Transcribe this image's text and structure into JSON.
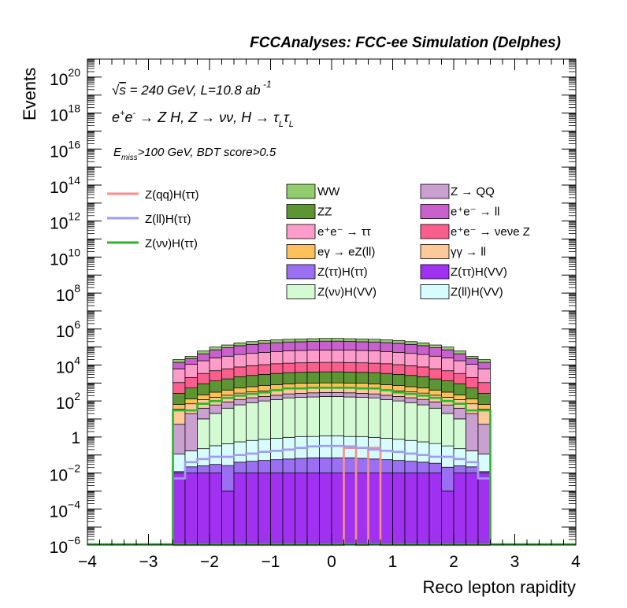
{
  "chart_data": {
    "type": "histogram",
    "title": "FCCAnalyses: FCC-ee Simulation (Delphes)",
    "xlabel": "Reco lepton rapidity",
    "ylabel": "Events",
    "xlim": [
      -4,
      4
    ],
    "ylim": [
      1e-06,
      1e+21
    ],
    "yscale": "log",
    "x_ticks": [
      "−4",
      "−3",
      "−2",
      "−1",
      "0",
      "1",
      "2",
      "3",
      "4"
    ],
    "y_ticks": [
      {
        "base": "10",
        "exp": "−6",
        "value": 1e-06
      },
      {
        "base": "10",
        "exp": "−4",
        "value": 0.0001
      },
      {
        "base": "10",
        "exp": "−2",
        "value": 0.01
      },
      {
        "base": "1",
        "exp": "",
        "value": 1
      },
      {
        "base": "10",
        "exp": "2",
        "value": 100.0
      },
      {
        "base": "10",
        "exp": "4",
        "value": 10000.0
      },
      {
        "base": "10",
        "exp": "6",
        "value": 1000000.0
      },
      {
        "base": "10",
        "exp": "8",
        "value": 100000000.0
      },
      {
        "base": "10",
        "exp": "10",
        "value": 10000000000.0
      },
      {
        "base": "10",
        "exp": "12",
        "value": 1000000000000.0
      },
      {
        "base": "10",
        "exp": "14",
        "value": 100000000000000.0
      },
      {
        "base": "10",
        "exp": "16",
        "value": 1e+16
      },
      {
        "base": "10",
        "exp": "18",
        "value": 1e+18
      },
      {
        "base": "10",
        "exp": "20",
        "value": 1e+20
      }
    ],
    "annotations": {
      "line1": "√s = 240 GeV, L=10.8 ab⁻¹",
      "line2": "e⁺e⁻ → Z H, Z → νν, H → τLτL",
      "line3": "Emiss>100 GeV, BDT score>0.5"
    },
    "bin_edges": [
      -2.6,
      -2.4,
      -2.2,
      -2.0,
      -1.8,
      -1.6,
      -1.4,
      -1.2,
      -1.0,
      -0.8,
      -0.6,
      -0.4,
      -0.2,
      0.0,
      0.2,
      0.4,
      0.6,
      0.8,
      1.0,
      1.2,
      1.4,
      1.6,
      1.8,
      2.0,
      2.2,
      2.4,
      2.6
    ],
    "stack_top_values": [
      20000,
      30000,
      60000,
      100000,
      130000,
      170000,
      200000,
      230000,
      250000,
      270000,
      280000,
      290000,
      300000,
      300000,
      290000,
      280000,
      270000,
      250000,
      230000,
      200000,
      170000,
      130000,
      100000,
      60000,
      30000,
      20000
    ],
    "stacked_series": [
      {
        "name": "Z(ττ)H(VV)",
        "color": "#a031f0",
        "values": [
          0.01,
          0.01,
          0.01,
          0.01,
          0.001,
          0.01,
          0.01,
          0.01,
          0.01,
          0.01,
          0.01,
          0.01,
          0.01,
          0.01,
          0.01,
          0.01,
          0.01,
          0.01,
          0.01,
          0.01,
          0.01,
          0.01,
          0.001,
          0.01,
          0.01,
          0.01
        ]
      },
      {
        "name": "Z(ττ)H(ττ)",
        "color": "#9b6ff2",
        "values": [
          0.002,
          0.012,
          0.015,
          0.02,
          0.025,
          0.03,
          0.035,
          0.04,
          0.045,
          0.05,
          0.055,
          0.06,
          0.06,
          0.06,
          0.06,
          0.055,
          0.05,
          0.045,
          0.04,
          0.035,
          0.03,
          0.025,
          0.02,
          0.015,
          0.012,
          0.002
        ]
      },
      {
        "name": "Z(ll)H(VV)",
        "color": "#d8fbfb",
        "values": [
          0.1,
          0.15,
          0.2,
          0.3,
          0.4,
          0.5,
          0.6,
          0.7,
          0.8,
          0.9,
          1.0,
          1.0,
          1.1,
          1.1,
          1.0,
          1.0,
          0.9,
          0.8,
          0.7,
          0.6,
          0.5,
          0.4,
          0.3,
          0.2,
          0.15,
          0.1
        ]
      },
      {
        "name": "Z(νν)H(VV)",
        "color": "#d4fad4",
        "values": [
          0,
          0,
          10,
          20,
          40,
          60,
          80,
          100,
          120,
          150,
          160,
          170,
          180,
          180,
          170,
          160,
          150,
          120,
          100,
          80,
          60,
          40,
          20,
          10,
          0,
          0
        ]
      },
      {
        "name": "Z → QQ",
        "color": "#c9a0d0",
        "values": [
          5,
          20,
          30,
          40,
          50,
          60,
          70,
          80,
          90,
          100,
          110,
          120,
          120,
          120,
          120,
          110,
          100,
          90,
          80,
          70,
          60,
          50,
          40,
          30,
          20,
          5
        ]
      },
      {
        "name": "γγ → ll",
        "color": "#fdc99a",
        "values": [
          30,
          50,
          80,
          100,
          120,
          150,
          170,
          190,
          200,
          210,
          220,
          230,
          230,
          230,
          230,
          220,
          210,
          200,
          190,
          170,
          150,
          120,
          100,
          80,
          50,
          30
        ]
      },
      {
        "name": "eγ → eZ(ll)",
        "color": "#fdc15a",
        "values": [
          30,
          60,
          100,
          150,
          200,
          250,
          300,
          350,
          400,
          450,
          500,
          500,
          500,
          500,
          500,
          500,
          450,
          400,
          350,
          300,
          250,
          200,
          150,
          100,
          60,
          30
        ]
      },
      {
        "name": "ZZ",
        "color": "#5d9534",
        "values": [
          200,
          400,
          700,
          1000,
          1300,
          1700,
          2000,
          2300,
          2600,
          2900,
          3000,
          3100,
          3200,
          3200,
          3100,
          3000,
          2900,
          2600,
          2300,
          2000,
          1700,
          1300,
          1000,
          700,
          400,
          200
        ]
      },
      {
        "name": "e⁺e⁻ → νeνe Z",
        "color": "#f95e8d",
        "values": [
          800,
          1500,
          2500,
          3500,
          4500,
          5500,
          6500,
          7500,
          8500,
          9000,
          9500,
          10000,
          10000,
          10000,
          10000,
          9500,
          9000,
          8500,
          7500,
          6500,
          5500,
          4500,
          3500,
          2500,
          1500,
          800
        ]
      },
      {
        "name": "e⁺e⁻ → ττ",
        "color": "#fd9cc8",
        "values": [
          5000,
          9000,
          14000,
          20000,
          25000,
          30000,
          35000,
          40000,
          45000,
          50000,
          52000,
          54000,
          55000,
          55000,
          54000,
          52000,
          50000,
          45000,
          40000,
          35000,
          30000,
          25000,
          20000,
          14000,
          9000,
          5000
        ]
      },
      {
        "name": "e⁺e⁻ → ll",
        "color": "#c861cc",
        "values": [
          8000,
          12000,
          25000,
          45000,
          60000,
          80000,
          95000,
          110000,
          120000,
          130000,
          135000,
          140000,
          145000,
          145000,
          140000,
          135000,
          130000,
          120000,
          110000,
          95000,
          80000,
          60000,
          45000,
          25000,
          12000,
          8000
        ]
      },
      {
        "name": "WW",
        "color": "#92cc6e",
        "values": [
          6000,
          7000,
          18000,
          30000,
          40000,
          50000,
          60000,
          70000,
          75000,
          80000,
          85000,
          88000,
          90000,
          90000,
          88000,
          85000,
          80000,
          75000,
          70000,
          60000,
          50000,
          40000,
          30000,
          18000,
          7000,
          6000
        ]
      }
    ],
    "line_series": [
      {
        "name": "Z(qq)H(ττ)",
        "color": "#f88e8c",
        "values": [
          1e-06,
          1e-06,
          1e-06,
          1e-06,
          1e-06,
          1e-06,
          1e-06,
          1e-06,
          1e-06,
          1e-06,
          1e-06,
          1e-06,
          1e-06,
          1e-06,
          0.25,
          1e-06,
          0.25,
          1e-06,
          1e-06,
          1e-06,
          1e-06,
          1e-06,
          1e-06,
          1e-06,
          1e-06,
          1e-06
        ]
      },
      {
        "name": "Z(ll)H(ττ)",
        "color": "#9e9cf3",
        "values": [
          0.005,
          0.04,
          0.06,
          0.08,
          0.08,
          0.1,
          0.12,
          0.15,
          0.17,
          0.2,
          0.25,
          0.3,
          0.32,
          0.32,
          0.3,
          0.25,
          0.2,
          0.17,
          0.15,
          0.12,
          0.1,
          0.08,
          0.08,
          0.06,
          0.04,
          0.005
        ]
      },
      {
        "name": "Z(νν)H(ττ)",
        "color": "#2db42d",
        "values": [
          30,
          30,
          70,
          100,
          150,
          200,
          250,
          300,
          400,
          500,
          500,
          550,
          550,
          550,
          550,
          500,
          500,
          400,
          300,
          250,
          200,
          150,
          100,
          70,
          30,
          30
        ]
      }
    ],
    "legend_left": [
      "Z(qq)H(ττ)",
      "Z(ll)H(ττ)",
      "Z(νν)H(ττ)"
    ],
    "legend_col1": [
      "WW",
      "ZZ",
      "e⁺e⁻ → ττ",
      "eγ → eZ(ll)",
      "Z(ττ)H(ττ)",
      "Z(νν)H(VV)"
    ],
    "legend_col2": [
      "Z → QQ",
      "e⁺e⁻ → ll",
      "e⁺e⁻ → νeνe Z",
      "γγ → ll",
      "Z(ττ)H(VV)",
      "Z(ll)H(VV)"
    ],
    "grid": false,
    "legend_placement": "top"
  }
}
